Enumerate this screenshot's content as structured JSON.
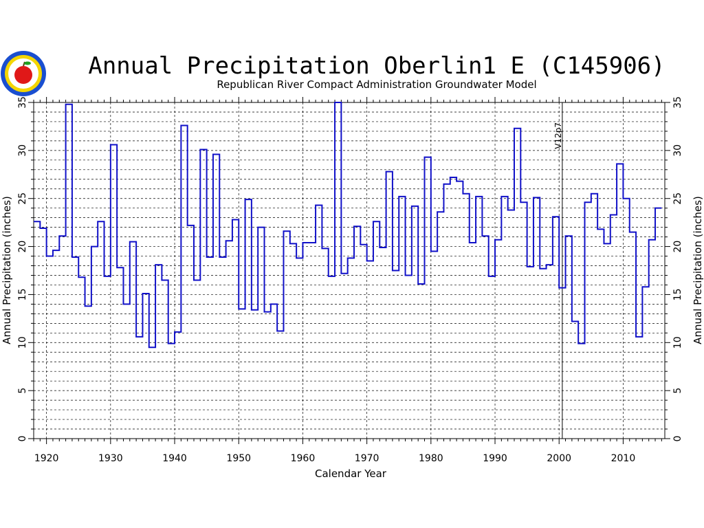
{
  "chart_data": {
    "type": "line",
    "style": "step",
    "title": "Annual Precipitation Oberlin1 E (C145906)",
    "subtitle": "Republican River Compact Administration Groundwater Model",
    "xlabel": "Calendar Year",
    "ylabel": "Annual Precipitation (inches)",
    "ylabel_right": "Annual Precipitation (inches)",
    "xlim": [
      1918,
      1916.5
    ],
    "ylim": [
      0,
      35
    ],
    "x_ticks": [
      1920,
      1930,
      1940,
      1950,
      1960,
      1970,
      1980,
      1990,
      2000,
      2010
    ],
    "x_tick_labels": [
      "1920",
      "1930",
      "1940",
      "1950",
      "1960",
      "1970",
      "1980",
      "1990",
      "2000",
      "2010"
    ],
    "y_ticks": [
      0,
      5,
      10,
      15,
      20,
      25,
      30,
      35
    ],
    "y_tick_labels": [
      "0",
      "5",
      "10",
      "15",
      "20",
      "25",
      "30",
      "35"
    ],
    "grid": "on",
    "series_color": "#1010c8",
    "annotation": {
      "text": "V12p7",
      "x": 2000.5
    },
    "series": [
      {
        "x": [
          1918,
          1919,
          1920,
          1921,
          1922,
          1923,
          1924,
          1925,
          1926,
          1927,
          1928,
          1929,
          1930,
          1931,
          1932,
          1933,
          1934,
          1935,
          1936,
          1937,
          1938,
          1939,
          1940,
          1941,
          1942,
          1943,
          1944,
          1945,
          1946,
          1947,
          1948,
          1949,
          1950,
          1951,
          1952,
          1953,
          1954,
          1955,
          1956,
          1957,
          1958,
          1959,
          1960,
          1961,
          1962,
          1963,
          1964,
          1965,
          1966,
          1967,
          1968,
          1969,
          1970,
          1971,
          1972,
          1973,
          1974,
          1975,
          1976,
          1977,
          1978,
          1979,
          1980,
          1981,
          1982,
          1983,
          1984,
          1985,
          1986,
          1987,
          1988,
          1989,
          1990,
          1991,
          1992,
          1993,
          1994,
          1995,
          1996,
          1997,
          1998,
          1999,
          2000,
          2001,
          2002,
          2003,
          2004,
          2005,
          2006,
          2007,
          2008,
          2009,
          2010,
          2011,
          2012,
          2013,
          2014,
          2015
        ],
        "values": [
          22.6,
          21.9,
          19.0,
          19.6,
          21.1,
          34.8,
          18.9,
          16.8,
          13.8,
          20.0,
          22.6,
          16.9,
          30.6,
          17.8,
          14.0,
          20.5,
          10.6,
          15.1,
          9.5,
          18.1,
          16.5,
          9.9,
          11.1,
          32.6,
          22.2,
          16.5,
          30.1,
          18.9,
          29.6,
          18.9,
          20.6,
          22.8,
          13.5,
          24.9,
          13.4,
          22.0,
          13.2,
          14.0,
          11.2,
          21.6,
          20.3,
          18.8,
          20.4,
          20.4,
          24.3,
          19.8,
          16.9,
          35.0,
          17.2,
          18.8,
          22.1,
          20.2,
          18.5,
          22.6,
          19.9,
          27.8,
          17.5,
          25.2,
          17.0,
          24.2,
          16.1,
          29.3,
          19.5,
          23.6,
          26.5,
          27.2,
          26.8,
          25.5,
          20.4,
          25.2,
          21.1,
          16.9,
          20.7,
          25.2,
          23.8,
          32.3,
          24.6,
          17.9,
          25.1,
          17.7,
          18.1,
          23.1,
          15.7,
          21.1,
          12.2,
          9.9,
          24.6,
          25.5,
          21.8,
          20.3,
          23.3,
          28.6,
          25.0,
          21.5,
          10.6,
          15.8,
          20.7,
          24.0
        ]
      }
    ]
  }
}
